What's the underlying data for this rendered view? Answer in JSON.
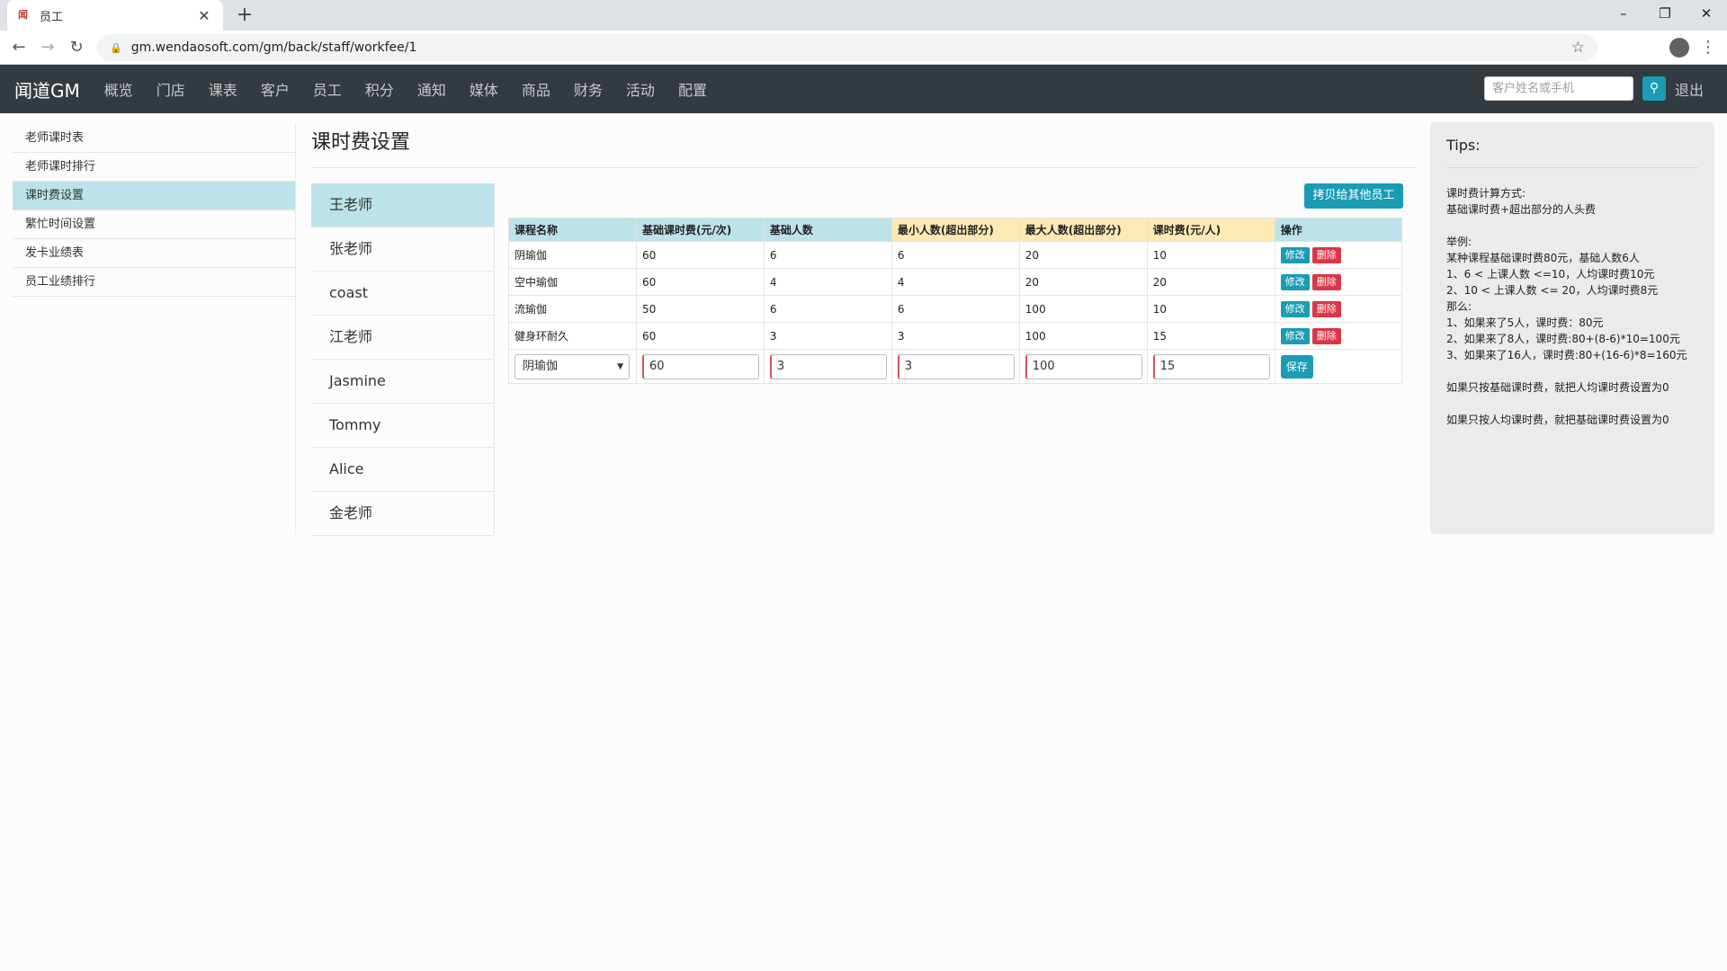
{
  "browser": {
    "tab_title": "员工",
    "url": "gm.wendaosoft.com/gm/back/staff/workfee/1"
  },
  "navbar": {
    "brand": "闻道GM",
    "items": [
      "概览",
      "门店",
      "课表",
      "客户",
      "员工",
      "积分",
      "通知",
      "媒体",
      "商品",
      "财务",
      "活动",
      "配置"
    ],
    "search_placeholder": "客户姓名或手机",
    "logout": "退出"
  },
  "sidebar": {
    "items": [
      "老师课时表",
      "老师课时排行",
      "课时费设置",
      "繁忙时间设置",
      "发卡业绩表",
      "员工业绩排行"
    ],
    "active": "课时费设置"
  },
  "main": {
    "title": "课时费设置",
    "copy_button": "拷贝给其他员工",
    "teachers": [
      "王老师",
      "张老师",
      "coast",
      "江老师",
      "Jasmine",
      "Tommy",
      "Alice",
      "金老师"
    ],
    "active_teacher": "王老师",
    "table": {
      "headers": [
        "课程名称",
        "基础课时费(元/次)",
        "基础人数",
        "最小人数(超出部分)",
        "最大人数(超出部分)",
        "课时费(元/人)",
        "操作"
      ],
      "rows": [
        [
          "阴瑜伽",
          "60",
          "6",
          "6",
          "20",
          "10"
        ],
        [
          "空中瑜伽",
          "60",
          "4",
          "4",
          "20",
          "20"
        ],
        [
          "流瑜伽",
          "50",
          "6",
          "6",
          "100",
          "10"
        ],
        [
          "健身环耐久",
          "60",
          "3",
          "3",
          "100",
          "15"
        ]
      ],
      "edit_label": "修改",
      "delete_label": "删除",
      "new_row": {
        "course": "阴瑜伽",
        "base_fee": "60",
        "base_count": "3",
        "min_count": "3",
        "max_count": "100",
        "fee_per_person": "15",
        "save_label": "保存"
      }
    }
  },
  "tips": {
    "title": "Tips:",
    "lines": [
      "课时费计算方式:",
      "基础课时费+超出部分的人头费",
      "",
      "举例:",
      "某种课程基础课时费80元，基础人数6人",
      "1、6 < 上课人数 <=10，人均课时费10元",
      "2、10 < 上课人数 <= 20，人均课时费8元",
      "那么:",
      "1、如果来了5人，课时费：80元",
      "2、如果来了8人，课时费:80+(8-6)*10=100元",
      "3、如果来了16人，课时费:80+(16-6)*8=160元",
      "",
      "如果只按基础课时费，就把人均课时费设置为0",
      "",
      "如果只按人均课时费，就把基础课时费设置为0"
    ]
  },
  "colors": {
    "navbar_bg": "#333a40",
    "accent": "#1a9cb4",
    "active_bg": "#bde3ea",
    "header_yellow": "#fde9b4",
    "danger": "#dc3545"
  }
}
